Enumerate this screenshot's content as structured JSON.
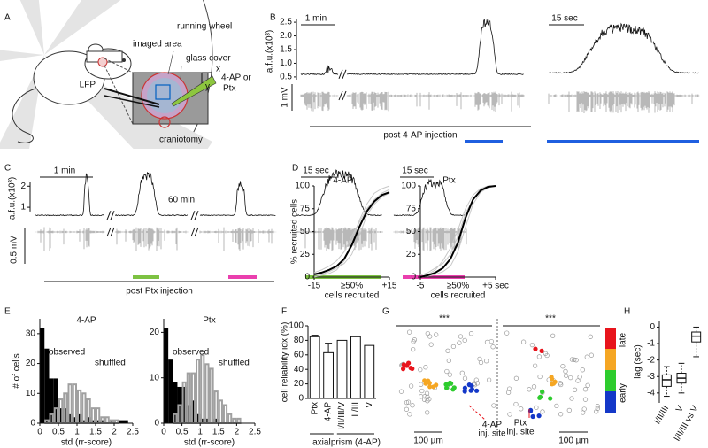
{
  "panels": [
    "A",
    "B",
    "C",
    "D",
    "E",
    "F",
    "G",
    "H"
  ],
  "schematic": {
    "running_wheel": "running wheel",
    "imaged_area": "imaged area",
    "glass_cover": "glass cover",
    "drug": [
      "4-AP or",
      "Ptx"
    ],
    "lfp": "LFP",
    "craniotomy": "craniotomy",
    "x": "x",
    "y": "y"
  },
  "traces_4ap": {
    "scale_1": "1 min",
    "scale_2": "15 sec",
    "ylabel": "a.f.u.(x10³)",
    "ylim": [
      0.4,
      2.6
    ],
    "yticks": [
      0.5,
      {
        "value": 1,
        "label": "1.0"
      },
      1.5,
      {
        "value": 2,
        "label": "2.0"
      },
      2.5
    ],
    "lfp_scale": "1 mV",
    "caption": "post 4-AP injection"
  },
  "traces_ptx": {
    "scale_1": "1 min",
    "gap": "60 min",
    "scale_2": "15 sec",
    "scale_3": "15 sec",
    "ylabel": "a.f.u.(x10³)",
    "ylim": [
      0.5,
      2.6
    ],
    "yticks": [
      1,
      2
    ],
    "lfp_scale": "0.5 mV",
    "caption": "post Ptx injection"
  },
  "maps": {
    "significance": [
      "***",
      "***"
    ],
    "site_4ap": [
      "4-AP",
      "inj. site"
    ],
    "site_ptx": [
      "Ptx",
      "inj. site"
    ],
    "scale": [
      "100 µm",
      "100 µm"
    ],
    "colorbar": {
      "top": "late",
      "bottom": "early"
    }
  },
  "chart_data": [
    {
      "type": "line",
      "title": "4-AP",
      "ylabel": "% recruited cells",
      "x_annotation": "≥50%",
      "xlabel": "cells recruited",
      "xlim": [
        -15,
        15
      ],
      "xticks": [
        -15,
        {
          "value": 15,
          "label": "+15"
        }
      ],
      "ylim": [
        0,
        100
      ],
      "yticks": [
        0,
        25,
        50,
        75,
        100
      ],
      "x": [
        -15,
        -12,
        -9,
        -6,
        -3,
        0,
        3,
        6,
        9,
        12,
        15
      ],
      "series": [
        {
          "color": "#c8c8c8",
          "values": [
            0,
            2,
            4,
            8,
            18,
            40,
            62,
            80,
            92,
            97,
            100
          ]
        },
        {
          "color": "#c8c8c8",
          "values": [
            5,
            8,
            12,
            18,
            28,
            45,
            60,
            75,
            85,
            92,
            96
          ]
        },
        {
          "color": "#c8c8c8",
          "values": [
            2,
            3,
            6,
            10,
            15,
            25,
            45,
            68,
            80,
            88,
            92
          ]
        },
        {
          "color": "#000000",
          "values": [
            3,
            5,
            8,
            12,
            20,
            35,
            55,
            72,
            83,
            90,
            93
          ]
        }
      ]
    },
    {
      "type": "line",
      "title": "Ptx",
      "x_annotation": "≥50%",
      "xlabel": "cells recruited",
      "xlim": [
        -5,
        5
      ],
      "xticks": [
        -5,
        {
          "value": 5,
          "label": "+5 sec"
        }
      ],
      "ylim": [
        0,
        100
      ],
      "yticks": [
        0,
        25,
        50,
        75,
        100
      ],
      "x": [
        -5,
        -4,
        -3,
        -2,
        -1,
        0,
        1,
        2,
        3,
        4,
        5
      ],
      "series": [
        {
          "color": "#c8c8c8",
          "values": [
            0,
            3,
            8,
            18,
            32,
            52,
            75,
            90,
            97,
            100,
            100
          ]
        },
        {
          "color": "#c8c8c8",
          "values": [
            0,
            1,
            3,
            6,
            12,
            28,
            55,
            80,
            93,
            98,
            100
          ]
        },
        {
          "color": "#c8c8c8",
          "values": [
            2,
            5,
            10,
            15,
            25,
            45,
            70,
            85,
            95,
            100,
            100
          ]
        },
        {
          "color": "#000000",
          "values": [
            0,
            2,
            5,
            10,
            20,
            38,
            65,
            85,
            95,
            99,
            100
          ]
        }
      ]
    },
    {
      "type": "histogram",
      "title": "4-AP",
      "ylabel": "# of cells",
      "xlabel": "std (rr-score)",
      "bins": [
        0,
        0.125,
        0.25,
        0.375,
        0.5,
        0.625,
        0.75,
        0.875,
        1,
        1.125,
        1.25,
        1.375,
        1.5,
        1.625,
        1.75,
        1.875,
        2,
        2.125,
        2.25,
        2.375,
        2.5
      ],
      "xlim": [
        0,
        2.5
      ],
      "xticks": [
        0,
        0.5,
        1,
        1.5,
        2,
        2.5
      ],
      "ylim": [
        0,
        35
      ],
      "yticks": [
        0,
        10,
        20,
        30
      ],
      "series": [
        {
          "name": "observed",
          "color": "#000000",
          "style": "filled",
          "values": [
            32,
            25,
            15,
            15,
            5,
            5,
            3,
            2,
            3,
            1,
            2,
            1,
            1,
            1,
            0,
            1,
            0,
            1,
            1,
            0
          ]
        },
        {
          "name": "shuffled",
          "color": "#a0a0a0",
          "style": "outline",
          "values": [
            0,
            1,
            3,
            5,
            8,
            10,
            13,
            13,
            11,
            10,
            8,
            5,
            5,
            2,
            2,
            1,
            1,
            0,
            0,
            0
          ]
        }
      ]
    },
    {
      "type": "histogram",
      "title": "Ptx",
      "xlabel": "std (rr-score)",
      "bins": [
        0,
        0.125,
        0.25,
        0.375,
        0.5,
        0.625,
        0.75,
        0.875,
        1,
        1.125,
        1.25,
        1.375,
        1.5,
        1.625,
        1.75,
        1.875,
        2,
        2.125,
        2.25,
        2.375,
        2.5
      ],
      "xlim": [
        0,
        2.5
      ],
      "xticks": [
        0,
        0.5,
        1,
        1.5,
        2,
        2.5
      ],
      "ylim": [
        0,
        23
      ],
      "yticks": [
        0,
        10,
        20
      ],
      "series": [
        {
          "name": "observed",
          "color": "#000000",
          "style": "filled",
          "values": [
            21,
            14,
            9,
            8,
            8,
            4,
            5,
            2,
            1,
            1,
            0,
            1,
            0,
            0,
            0,
            0,
            0,
            0,
            0,
            0
          ]
        },
        {
          "name": "shuffled",
          "color": "#a0a0a0",
          "style": "outline",
          "values": [
            0,
            0,
            2,
            4,
            9,
            11,
            11,
            14,
            15,
            13,
            12,
            7,
            5,
            4,
            2,
            1,
            1,
            0,
            0,
            0
          ]
        }
      ]
    },
    {
      "type": "bar",
      "ylabel": "cell reliability idx (%)",
      "categories": [
        "Ptx",
        "4-AP",
        "I/II/III/V",
        "II/III",
        "V"
      ],
      "values": [
        85,
        63,
        80,
        85,
        73
      ],
      "errors": [
        2,
        13,
        null,
        null,
        null
      ],
      "ylim": [
        0,
        100
      ],
      "yticks": [
        0,
        20,
        40,
        60,
        80,
        100
      ],
      "groups": [
        "axial",
        "prism (4-AP)"
      ]
    },
    {
      "type": "box",
      "ylabel": "lag (sec)",
      "categories": [
        "I/II/III",
        "V",
        "I/II/III vs V"
      ],
      "boxes": [
        {
          "min": -4.2,
          "q1": -3.6,
          "median": -3.2,
          "q3": -2.9,
          "max": -2.4
        },
        {
          "min": -4.0,
          "q1": -3.4,
          "median": -3.1,
          "q3": -2.8,
          "max": -2.2
        },
        {
          "min": -1.8,
          "q1": -0.9,
          "median": -0.55,
          "q3": -0.3,
          "max": 0
        }
      ],
      "ylim": [
        -4.6,
        0.4
      ],
      "yticks": [
        0,
        -1,
        -2,
        -3,
        -4
      ]
    }
  ]
}
